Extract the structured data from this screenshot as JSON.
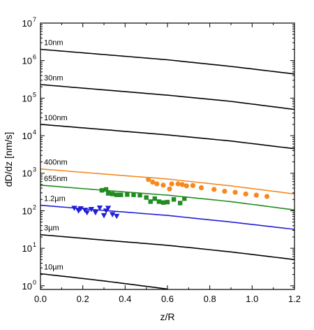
{
  "chart_data": {
    "type": "line",
    "xlabel": "z/R",
    "ylabel": "dD/dz [nm/s]",
    "xlim": [
      0.0,
      1.2
    ],
    "ylim": [
      0.8,
      10000000
    ],
    "yscale": "log",
    "grid": false,
    "legend": "none",
    "x_ticks": [
      0.0,
      0.2,
      0.4,
      0.6,
      0.8,
      1.0,
      1.2
    ],
    "x_tick_labels": [
      "0.0",
      "0.2",
      "0.4",
      "0.6",
      "0.8",
      "1.0",
      "1.2"
    ],
    "y_ticks": [
      1,
      10,
      100,
      1000,
      10000,
      100000,
      1000000,
      10000000
    ],
    "y_tick_base": "10",
    "y_tick_exponents": [
      "0",
      "1",
      "2",
      "3",
      "4",
      "5",
      "6",
      "7"
    ],
    "series": [
      {
        "name": "10nm",
        "color": "#000000",
        "x": [
          0.0,
          0.3,
          0.6,
          0.9,
          1.2
        ],
        "y": [
          2000000,
          1450000,
          1050000,
          700000,
          440000
        ]
      },
      {
        "name": "30nm",
        "color": "#000000",
        "x": [
          0.0,
          0.3,
          0.6,
          0.9,
          1.2
        ],
        "y": [
          230000,
          166000,
          120000,
          82000,
          50000
        ]
      },
      {
        "name": "100nm",
        "color": "#000000",
        "x": [
          0.0,
          0.3,
          0.6,
          0.9,
          1.2
        ],
        "y": [
          20000,
          14500,
          10500,
          7200,
          4500
        ]
      },
      {
        "name": "400nm",
        "color": "#f5891f",
        "x": [
          0.0,
          0.3,
          0.6,
          0.9,
          1.2
        ],
        "y": [
          1300,
          950,
          700,
          460,
          280
        ]
      },
      {
        "name": "655nm",
        "color": "#228b22",
        "x": [
          0.0,
          0.3,
          0.6,
          0.9,
          1.2
        ],
        "y": [
          480,
          350,
          260,
          175,
          105
        ]
      },
      {
        "name": "1.2µm",
        "color": "#1f1fd6",
        "x": [
          0.0,
          0.3,
          0.6,
          0.9,
          1.2
        ],
        "y": [
          140,
          102,
          75,
          50,
          32
        ]
      },
      {
        "name": "3µm",
        "color": "#000000",
        "x": [
          0.0,
          0.3,
          0.6,
          0.9,
          1.2
        ],
        "y": [
          23,
          16.5,
          12,
          8,
          5
        ]
      },
      {
        "name": "10µm",
        "color": "#000000",
        "x": [
          0.0,
          0.3,
          0.6
        ],
        "y": [
          2.1,
          1.35,
          0.82
        ]
      }
    ],
    "scatter_series": [
      {
        "color": "#f5891f",
        "marker": "circle",
        "x": [
          0.51,
          0.53,
          0.55,
          0.58,
          0.61,
          0.62,
          0.65,
          0.67,
          0.69,
          0.72,
          0.76,
          0.82,
          0.87,
          0.92,
          0.97,
          1.02,
          1.07
        ],
        "y": [
          680,
          580,
          520,
          480,
          380,
          520,
          520,
          500,
          460,
          470,
          410,
          370,
          330,
          310,
          280,
          260,
          240
        ]
      },
      {
        "color": "#228b22",
        "marker": "square",
        "x": [
          0.29,
          0.31,
          0.32,
          0.34,
          0.36,
          0.38,
          0.41,
          0.44,
          0.47,
          0.5,
          0.52,
          0.54,
          0.56,
          0.58,
          0.6,
          0.63,
          0.66,
          0.68
        ],
        "y": [
          350,
          370,
          290,
          280,
          265,
          265,
          270,
          265,
          260,
          225,
          175,
          210,
          175,
          165,
          170,
          200,
          160,
          210
        ]
      },
      {
        "color": "#1f1fd6",
        "marker": "triangle-down",
        "x": [
          0.16,
          0.18,
          0.19,
          0.21,
          0.22,
          0.24,
          0.26,
          0.28,
          0.3,
          0.31,
          0.32,
          0.34,
          0.36
        ],
        "y": [
          118,
          100,
          115,
          105,
          90,
          110,
          90,
          120,
          75,
          100,
          118,
          80,
          72
        ]
      }
    ]
  }
}
